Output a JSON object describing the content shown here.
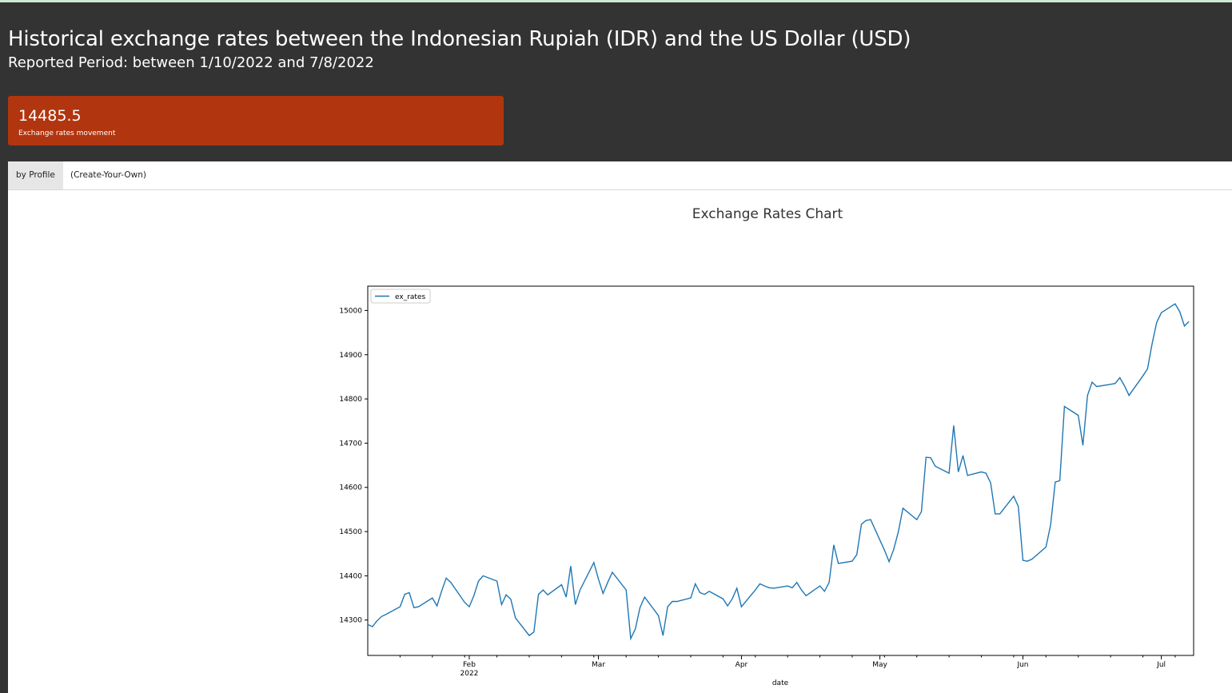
{
  "header": {
    "title": "Historical exchange rates between the Indonesian Rupiah (IDR) and the US Dollar (USD)",
    "subtitle": "Reported Period: between 1/10/2022 and 7/8/2022"
  },
  "kpi": {
    "value": "14485.5",
    "label": "Exchange rates movement",
    "color": "#b1350f"
  },
  "tabs": [
    {
      "label": "by Profile",
      "active": true
    },
    {
      "label": "(Create-Your-Own)",
      "active": false
    }
  ],
  "chart_data": {
    "type": "line",
    "title": "Exchange Rates Chart",
    "xlabel": "date",
    "ylabel": "",
    "legend": "top-left",
    "grid": false,
    "ylim": [
      14220,
      15055
    ],
    "xlim": [
      "2022-01-10",
      "2022-07-08"
    ],
    "y_ticks": [
      14300,
      14400,
      14500,
      14600,
      14700,
      14800,
      14900,
      15000
    ],
    "x_ticks": [
      {
        "date": "2022-02-01",
        "label": "Feb",
        "sublabel": "2022"
      },
      {
        "date": "2022-03-01",
        "label": "Mar",
        "sublabel": ""
      },
      {
        "date": "2022-04-01",
        "label": "Apr",
        "sublabel": ""
      },
      {
        "date": "2022-05-01",
        "label": "May",
        "sublabel": ""
      },
      {
        "date": "2022-06-01",
        "label": "Jun",
        "sublabel": ""
      },
      {
        "date": "2022-07-01",
        "label": "Jul",
        "sublabel": ""
      }
    ],
    "series": [
      {
        "name": "ex_rates",
        "color": "#1f77b4",
        "points": [
          [
            "2022-01-10",
            14290
          ],
          [
            "2022-01-11",
            14285
          ],
          [
            "2022-01-12",
            14298
          ],
          [
            "2022-01-13",
            14308
          ],
          [
            "2022-01-14",
            14313
          ],
          [
            "2022-01-17",
            14330
          ],
          [
            "2022-01-18",
            14358
          ],
          [
            "2022-01-19",
            14362
          ],
          [
            "2022-01-20",
            14328
          ],
          [
            "2022-01-21",
            14330
          ],
          [
            "2022-01-24",
            14350
          ],
          [
            "2022-01-25",
            14332
          ],
          [
            "2022-01-26",
            14365
          ],
          [
            "2022-01-27",
            14395
          ],
          [
            "2022-01-28",
            14385
          ],
          [
            "2022-01-31",
            14340
          ],
          [
            "2022-02-01",
            14330
          ],
          [
            "2022-02-02",
            14355
          ],
          [
            "2022-02-03",
            14388
          ],
          [
            "2022-02-04",
            14400
          ],
          [
            "2022-02-07",
            14388
          ],
          [
            "2022-02-08",
            14335
          ],
          [
            "2022-02-09",
            14357
          ],
          [
            "2022-02-10",
            14347
          ],
          [
            "2022-02-11",
            14305
          ],
          [
            "2022-02-14",
            14265
          ],
          [
            "2022-02-15",
            14273
          ],
          [
            "2022-02-16",
            14358
          ],
          [
            "2022-02-17",
            14368
          ],
          [
            "2022-02-18",
            14357
          ],
          [
            "2022-02-21",
            14380
          ],
          [
            "2022-02-22",
            14352
          ],
          [
            "2022-02-23",
            14422
          ],
          [
            "2022-02-24",
            14335
          ],
          [
            "2022-02-25",
            14368
          ],
          [
            "2022-02-28",
            14430
          ],
          [
            "2022-03-01",
            14393
          ],
          [
            "2022-03-02",
            14360
          ],
          [
            "2022-03-03",
            14385
          ],
          [
            "2022-03-04",
            14408
          ],
          [
            "2022-03-07",
            14368
          ],
          [
            "2022-03-08",
            14258
          ],
          [
            "2022-03-09",
            14280
          ],
          [
            "2022-03-10",
            14328
          ],
          [
            "2022-03-11",
            14352
          ],
          [
            "2022-03-14",
            14310
          ],
          [
            "2022-03-15",
            14265
          ],
          [
            "2022-03-16",
            14330
          ],
          [
            "2022-03-17",
            14342
          ],
          [
            "2022-03-18",
            14342
          ],
          [
            "2022-03-21",
            14350
          ],
          [
            "2022-03-22",
            14382
          ],
          [
            "2022-03-23",
            14362
          ],
          [
            "2022-03-24",
            14358
          ],
          [
            "2022-03-25",
            14365
          ],
          [
            "2022-03-28",
            14348
          ],
          [
            "2022-03-29",
            14332
          ],
          [
            "2022-03-30",
            14348
          ],
          [
            "2022-03-31",
            14372
          ],
          [
            "2022-04-01",
            14330
          ],
          [
            "2022-04-04",
            14368
          ],
          [
            "2022-04-05",
            14382
          ],
          [
            "2022-04-06",
            14377
          ],
          [
            "2022-04-07",
            14373
          ],
          [
            "2022-04-08",
            14372
          ],
          [
            "2022-04-11",
            14377
          ],
          [
            "2022-04-12",
            14373
          ],
          [
            "2022-04-13",
            14385
          ],
          [
            "2022-04-14",
            14368
          ],
          [
            "2022-04-15",
            14355
          ],
          [
            "2022-04-18",
            14377
          ],
          [
            "2022-04-19",
            14365
          ],
          [
            "2022-04-20",
            14385
          ],
          [
            "2022-04-21",
            14470
          ],
          [
            "2022-04-22",
            14428
          ],
          [
            "2022-04-25",
            14433
          ],
          [
            "2022-04-26",
            14448
          ],
          [
            "2022-04-27",
            14517
          ],
          [
            "2022-04-28",
            14525
          ],
          [
            "2022-04-29",
            14527
          ],
          [
            "2022-05-02",
            14458
          ],
          [
            "2022-05-03",
            14432
          ],
          [
            "2022-05-04",
            14460
          ],
          [
            "2022-05-05",
            14500
          ],
          [
            "2022-05-06",
            14553
          ],
          [
            "2022-05-09",
            14527
          ],
          [
            "2022-05-10",
            14545
          ],
          [
            "2022-05-11",
            14668
          ],
          [
            "2022-05-12",
            14667
          ],
          [
            "2022-05-13",
            14648
          ],
          [
            "2022-05-16",
            14632
          ],
          [
            "2022-05-17",
            14740
          ],
          [
            "2022-05-18",
            14635
          ],
          [
            "2022-05-19",
            14672
          ],
          [
            "2022-05-20",
            14627
          ],
          [
            "2022-05-23",
            14635
          ],
          [
            "2022-05-24",
            14632
          ],
          [
            "2022-05-25",
            14610
          ],
          [
            "2022-05-26",
            14540
          ],
          [
            "2022-05-27",
            14540
          ],
          [
            "2022-05-30",
            14580
          ],
          [
            "2022-05-31",
            14557
          ],
          [
            "2022-06-01",
            14435
          ],
          [
            "2022-06-02",
            14433
          ],
          [
            "2022-06-03",
            14438
          ],
          [
            "2022-06-06",
            14465
          ],
          [
            "2022-06-07",
            14515
          ],
          [
            "2022-06-08",
            14612
          ],
          [
            "2022-06-09",
            14615
          ],
          [
            "2022-06-10",
            14783
          ],
          [
            "2022-06-13",
            14763
          ],
          [
            "2022-06-14",
            14695
          ],
          [
            "2022-06-15",
            14808
          ],
          [
            "2022-06-16",
            14838
          ],
          [
            "2022-06-17",
            14828
          ],
          [
            "2022-06-20",
            14833
          ],
          [
            "2022-06-21",
            14835
          ],
          [
            "2022-06-22",
            14848
          ],
          [
            "2022-06-23",
            14830
          ],
          [
            "2022-06-24",
            14808
          ],
          [
            "2022-06-27",
            14852
          ],
          [
            "2022-06-28",
            14868
          ],
          [
            "2022-06-29",
            14925
          ],
          [
            "2022-06-30",
            14973
          ],
          [
            "2022-07-01",
            14995
          ],
          [
            "2022-07-04",
            15015
          ],
          [
            "2022-07-05",
            14997
          ],
          [
            "2022-07-06",
            14965
          ],
          [
            "2022-07-07",
            14975
          ]
        ]
      }
    ]
  }
}
